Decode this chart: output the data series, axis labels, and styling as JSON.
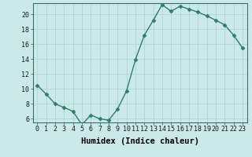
{
  "x": [
    0,
    1,
    2,
    3,
    4,
    5,
    6,
    7,
    8,
    9,
    10,
    11,
    12,
    13,
    14,
    15,
    16,
    17,
    18,
    19,
    20,
    21,
    22,
    23
  ],
  "y": [
    10.5,
    9.3,
    8.0,
    7.5,
    7.0,
    5.2,
    6.5,
    6.0,
    5.8,
    7.3,
    9.7,
    13.9,
    17.2,
    19.2,
    21.3,
    20.4,
    21.1,
    20.7,
    20.3,
    19.8,
    19.2,
    18.6,
    17.2,
    15.5
  ],
  "xlabel": "Humidex (Indice chaleur)",
  "xlim": [
    -0.5,
    23.5
  ],
  "ylim": [
    5.5,
    21.5
  ],
  "yticks": [
    6,
    8,
    10,
    12,
    14,
    16,
    18,
    20
  ],
  "xticks": [
    0,
    1,
    2,
    3,
    4,
    5,
    6,
    7,
    8,
    9,
    10,
    11,
    12,
    13,
    14,
    15,
    16,
    17,
    18,
    19,
    20,
    21,
    22,
    23
  ],
  "line_color": "#2e7d6e",
  "marker": "D",
  "marker_size": 2.5,
  "bg_color": "#cce9ea",
  "grid_color": "#b0d4d5",
  "xlabel_fontsize": 7.5,
  "tick_fontsize": 6.0
}
